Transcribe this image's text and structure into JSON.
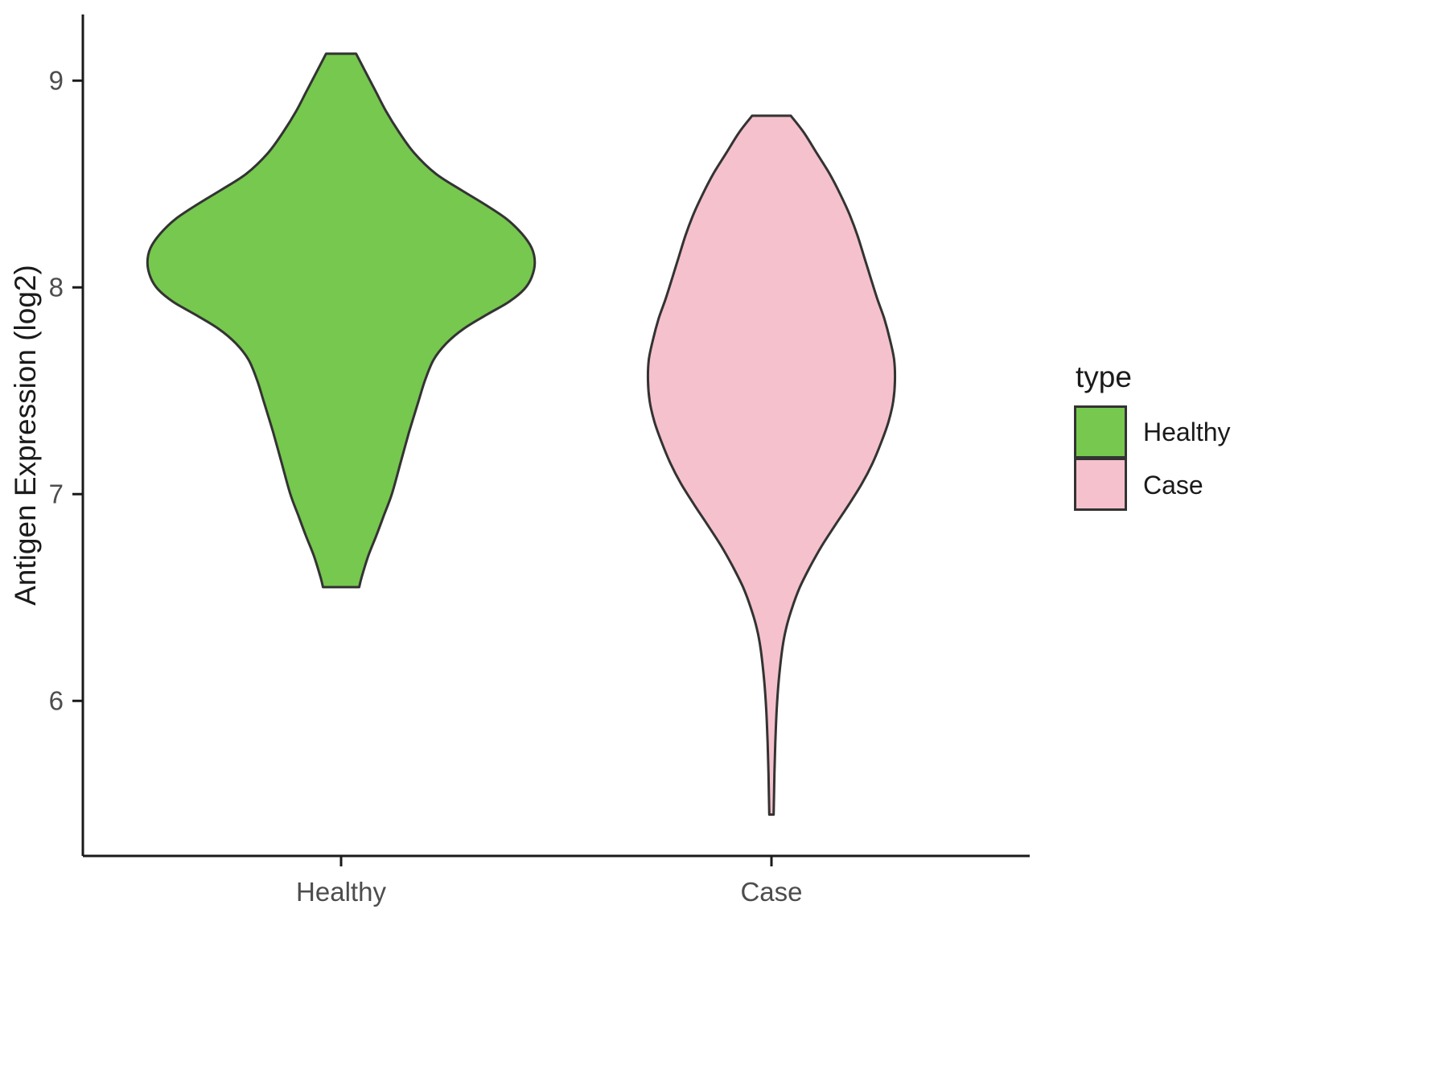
{
  "figure": {
    "background": "#FFFFFF"
  },
  "colors": {
    "healthy_fill": "#76C84E",
    "case_fill": "#F5C1CD",
    "violin_outline": "#333333",
    "axis_line": "#1A1A1A",
    "tick_label_text": "#4D4D4D",
    "axis_title_text": "#1A1A1A"
  },
  "chart_data": {
    "type": "violin",
    "title": "",
    "xlabel": "",
    "ylabel": "Antigen Expression (log2)",
    "categories": [
      "Healthy",
      "Case"
    ],
    "x_positions": [
      1,
      2
    ],
    "xlim": [
      0.4,
      2.6
    ],
    "ylim": [
      5.25,
      9.32
    ],
    "y_ticks": [
      6,
      7,
      8,
      9
    ],
    "grid": false,
    "legend": {
      "title": "type",
      "position": "right",
      "entries": [
        {
          "label": "Healthy",
          "fill": "#76C84E"
        },
        {
          "label": "Case",
          "fill": "#F5C1CD"
        }
      ]
    },
    "series": [
      {
        "name": "Healthy",
        "x": 1,
        "fill": "#76C84E",
        "stroke": "#333333",
        "y_range": [
          6.55,
          9.13
        ],
        "peak_y": 8.12,
        "max_halfwidth": 0.45,
        "profile": [
          [
            9.13,
            0.035
          ],
          [
            9.05,
            0.055
          ],
          [
            8.95,
            0.08
          ],
          [
            8.85,
            0.105
          ],
          [
            8.75,
            0.135
          ],
          [
            8.65,
            0.17
          ],
          [
            8.55,
            0.22
          ],
          [
            8.47,
            0.28
          ],
          [
            8.4,
            0.335
          ],
          [
            8.33,
            0.385
          ],
          [
            8.26,
            0.42
          ],
          [
            8.19,
            0.443
          ],
          [
            8.12,
            0.45
          ],
          [
            8.05,
            0.443
          ],
          [
            7.99,
            0.425
          ],
          [
            7.93,
            0.39
          ],
          [
            7.87,
            0.34
          ],
          [
            7.8,
            0.285
          ],
          [
            7.73,
            0.245
          ],
          [
            7.65,
            0.215
          ],
          [
            7.55,
            0.195
          ],
          [
            7.45,
            0.18
          ],
          [
            7.3,
            0.158
          ],
          [
            7.15,
            0.138
          ],
          [
            7.0,
            0.118
          ],
          [
            6.9,
            0.1
          ],
          [
            6.8,
            0.082
          ],
          [
            6.7,
            0.063
          ],
          [
            6.6,
            0.048
          ],
          [
            6.55,
            0.042
          ]
        ]
      },
      {
        "name": "Case",
        "x": 2,
        "fill": "#F5C1CD",
        "stroke": "#333333",
        "y_range": [
          5.45,
          8.83
        ],
        "peak_y": 7.55,
        "max_halfwidth": 0.287,
        "profile": [
          [
            8.83,
            0.045
          ],
          [
            8.75,
            0.075
          ],
          [
            8.65,
            0.105
          ],
          [
            8.55,
            0.135
          ],
          [
            8.45,
            0.16
          ],
          [
            8.35,
            0.182
          ],
          [
            8.25,
            0.2
          ],
          [
            8.15,
            0.215
          ],
          [
            8.05,
            0.23
          ],
          [
            7.95,
            0.245
          ],
          [
            7.85,
            0.262
          ],
          [
            7.75,
            0.275
          ],
          [
            7.65,
            0.285
          ],
          [
            7.55,
            0.287
          ],
          [
            7.45,
            0.283
          ],
          [
            7.35,
            0.272
          ],
          [
            7.25,
            0.255
          ],
          [
            7.15,
            0.235
          ],
          [
            7.05,
            0.21
          ],
          [
            6.95,
            0.18
          ],
          [
            6.85,
            0.148
          ],
          [
            6.75,
            0.117
          ],
          [
            6.65,
            0.09
          ],
          [
            6.55,
            0.066
          ],
          [
            6.45,
            0.048
          ],
          [
            6.35,
            0.034
          ],
          [
            6.25,
            0.025
          ],
          [
            6.1,
            0.017
          ],
          [
            5.95,
            0.012
          ],
          [
            5.8,
            0.009
          ],
          [
            5.65,
            0.007
          ],
          [
            5.45,
            0.005
          ]
        ]
      }
    ]
  }
}
